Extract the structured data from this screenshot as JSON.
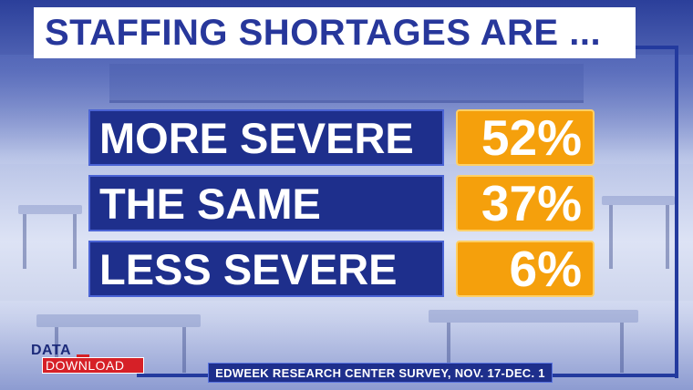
{
  "headline": "STAFFING SHORTAGES ARE ...",
  "chart_data": {
    "type": "table",
    "title": "STAFFING SHORTAGES ARE ...",
    "categories": [
      "MORE SEVERE",
      "THE SAME",
      "LESS SEVERE"
    ],
    "values": [
      52,
      37,
      6
    ],
    "value_labels": [
      "52%",
      "37%",
      "6%"
    ],
    "unit": "%"
  },
  "colors": {
    "label_bar": "#1e2f8c",
    "value_box": "#f5a00c",
    "headline_text": "#27379b",
    "logo_red": "#d62027"
  },
  "logo": {
    "line1": "DATA",
    "line2": "DOWNLOAD"
  },
  "source": "EDWEEK RESEARCH CENTER SURVEY, NOV. 17-DEC. 1"
}
